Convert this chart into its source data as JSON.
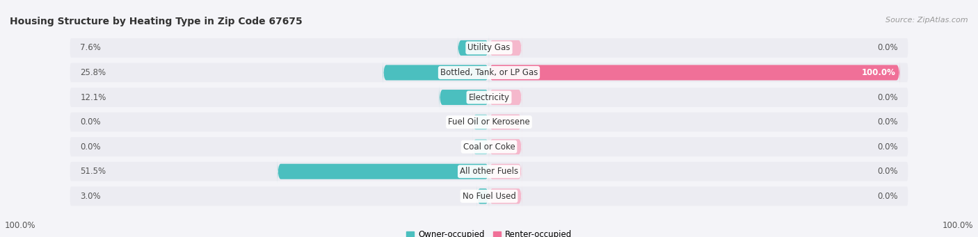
{
  "title": "Housing Structure by Heating Type in Zip Code 67675",
  "source": "Source: ZipAtlas.com",
  "categories": [
    "Utility Gas",
    "Bottled, Tank, or LP Gas",
    "Electricity",
    "Fuel Oil or Kerosene",
    "Coal or Coke",
    "All other Fuels",
    "No Fuel Used"
  ],
  "owner_values": [
    7.6,
    25.8,
    12.1,
    0.0,
    0.0,
    51.5,
    3.0
  ],
  "renter_values": [
    0.0,
    100.0,
    0.0,
    0.0,
    0.0,
    0.0,
    0.0
  ],
  "renter_stub_pct": 8.0,
  "owner_color": "#4bbfbf",
  "renter_color": "#f07098",
  "renter_stub_color": "#f5b8cc",
  "owner_stub_color": "#a0dede",
  "background_color": "#f4f4f8",
  "bar_bg_color": "#e4e4ec",
  "row_bg_color": "#ececf2",
  "title_fontsize": 10,
  "source_fontsize": 8,
  "label_fontsize": 8.5,
  "val_fontsize": 8.5,
  "bar_height": 0.62,
  "x_max": 100.0,
  "legend_labels": [
    "Owner-occupied",
    "Renter-occupied"
  ],
  "axis_label_left": "100.0%",
  "axis_label_right": "100.0%"
}
